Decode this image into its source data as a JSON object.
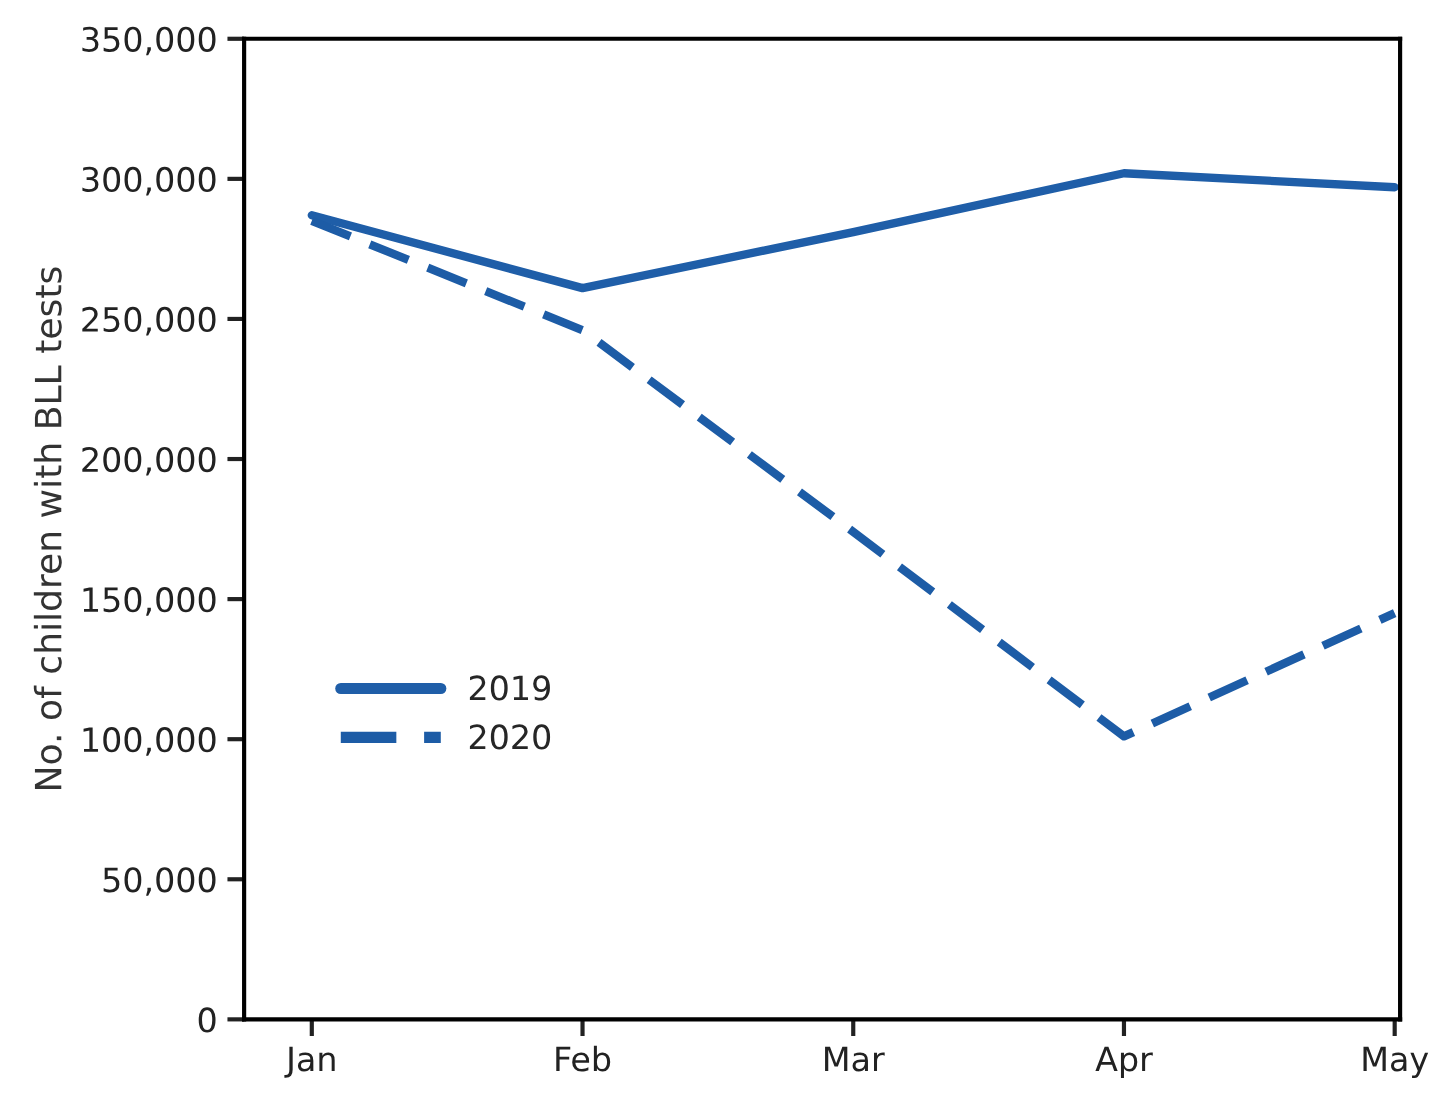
{
  "chart_data": {
    "type": "line",
    "ylabel": "No. of children with BLL tests",
    "categories": [
      "Jan",
      "Feb",
      "Mar",
      "Apr",
      "May"
    ],
    "series": [
      {
        "name": "2019",
        "color": "#1f5ea8",
        "line_style": "solid",
        "values": [
          287000,
          261000,
          281000,
          302000,
          297000
        ]
      },
      {
        "name": "2020",
        "color": "#1d5ca6",
        "line_style": "dashed",
        "values": [
          285000,
          246000,
          174000,
          101000,
          145000
        ]
      }
    ],
    "ylim": [
      0,
      350000
    ],
    "yticks": [
      {
        "value": 0,
        "label": "0"
      },
      {
        "value": 50000,
        "label": "50,000"
      },
      {
        "value": 100000,
        "label": "100,000"
      },
      {
        "value": 150000,
        "label": "150,000"
      },
      {
        "value": 200000,
        "label": "200,000"
      },
      {
        "value": 250000,
        "label": "250,000"
      },
      {
        "value": 300000,
        "label": "300,000"
      },
      {
        "value": 350000,
        "label": "350,000"
      }
    ],
    "grid": false,
    "legend": "left",
    "marker": "none"
  }
}
